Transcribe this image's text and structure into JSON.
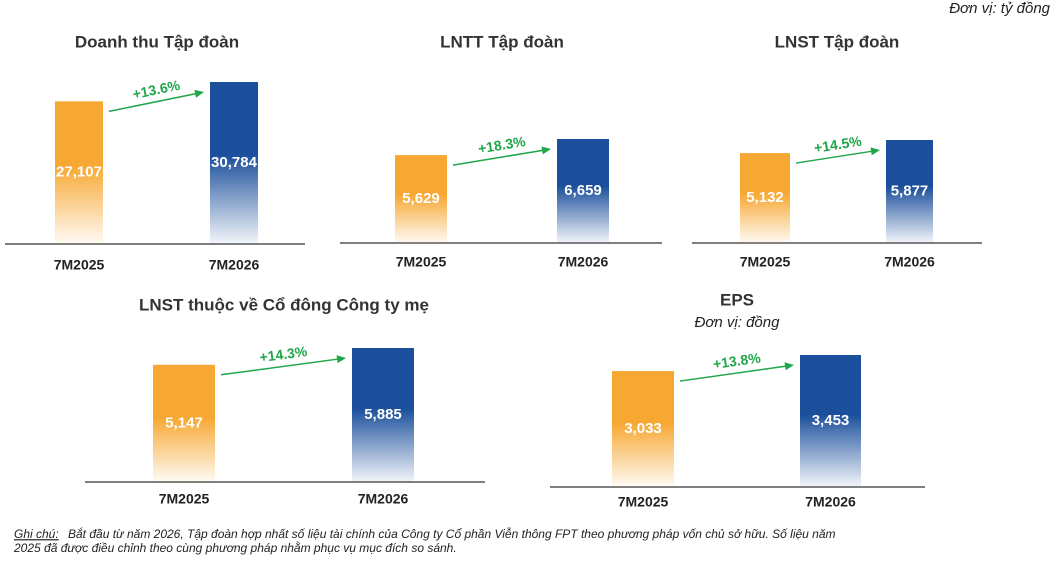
{
  "unit": "Đơn vị: tỷ đồng",
  "note": {
    "label": "Ghi chú:",
    "lines": [
      "Bắt đầu từ năm 2026, Tập đoàn hợp nhất số liệu tài chính của Công ty Cổ phần Viễn thông FPT theo phương pháp vốn chủ sở hữu. Số liệu năm",
      "2025 đã được điều chỉnh theo cùng phương pháp nhằm phục vụ mục đích so sánh."
    ]
  },
  "chart_data": [
    {
      "type": "bar",
      "title": "Doanh thu Tập đoàn",
      "categories": [
        "7M2025",
        "7M2026"
      ],
      "values": [
        27107,
        30784
      ],
      "value_labels": [
        "27,107",
        "30,784"
      ],
      "colors": [
        "#f7a833",
        "#1b4f9c"
      ],
      "annotation": "+13.6%",
      "annotation_color": "#1fa64a"
    },
    {
      "type": "bar",
      "title": "LNTT Tập đoàn",
      "categories": [
        "7M2025",
        "7M2026"
      ],
      "values": [
        5629,
        6659
      ],
      "value_labels": [
        "5,629",
        "6,659"
      ],
      "colors": [
        "#f7a833",
        "#1b4f9c"
      ],
      "annotation": "+18.3%",
      "annotation_color": "#1fa64a"
    },
    {
      "type": "bar",
      "title": "LNST Tập đoàn",
      "categories": [
        "7M2025",
        "7M2026"
      ],
      "values": [
        5132,
        5877
      ],
      "value_labels": [
        "5,132",
        "5,877"
      ],
      "colors": [
        "#f7a833",
        "#1b4f9c"
      ],
      "annotation": "+14.5%",
      "annotation_color": "#1fa64a"
    },
    {
      "type": "bar",
      "title": "LNST thuộc về Cổ đông Công ty mẹ",
      "categories": [
        "7M2025",
        "7M2026"
      ],
      "values": [
        5147,
        5885
      ],
      "value_labels": [
        "5,147",
        "5,885"
      ],
      "colors": [
        "#f7a833",
        "#1b4f9c"
      ],
      "annotation": "+14.3%",
      "annotation_color": "#1fa64a"
    },
    {
      "type": "bar",
      "title": "EPS",
      "subtitle": "Đơn vị: đồng",
      "categories": [
        "7M2025",
        "7M2026"
      ],
      "values": [
        3033,
        3453
      ],
      "value_labels": [
        "3,033",
        "3,453"
      ],
      "colors": [
        "#f7a833",
        "#1b4f9c"
      ],
      "annotation": "+13.8%",
      "annotation_color": "#1fa64a"
    }
  ]
}
